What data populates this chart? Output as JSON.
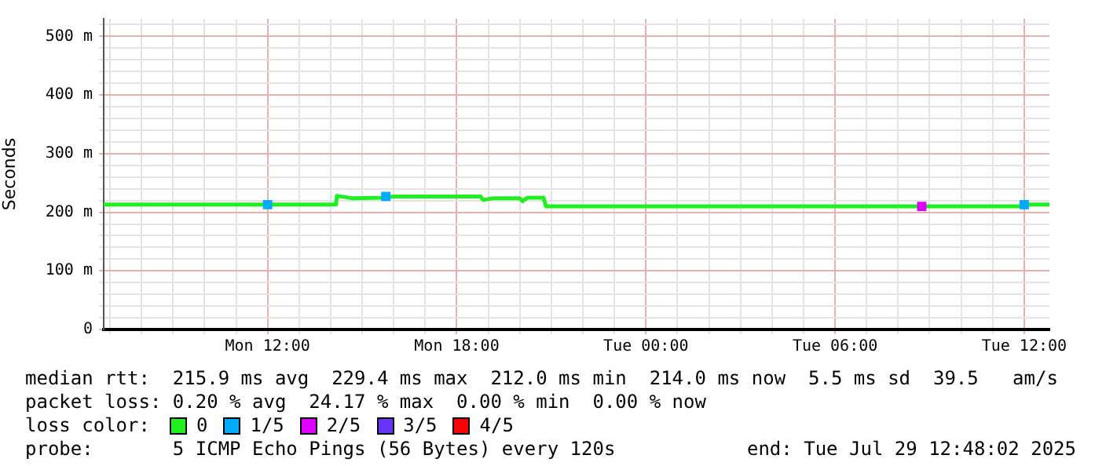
{
  "chart_data": {
    "type": "line",
    "ylabel": "Seconds",
    "legend_title": "loss color:",
    "legend": "bottom",
    "grid": true,
    "marker": "none",
    "xlim": [
      "2025-07-28T06:48",
      "2025-07-29T12:48"
    ],
    "xticks": [
      {
        "value": "2025-07-28T07:00",
        "label": null
      },
      {
        "value": "2025-07-28T08:00",
        "label": null
      },
      {
        "value": "2025-07-28T09:00",
        "label": null
      },
      {
        "value": "2025-07-28T10:00",
        "label": null
      },
      {
        "value": "2025-07-28T11:00",
        "label": null
      },
      {
        "value": "2025-07-28T12:00",
        "label": "Mon 12:00"
      },
      {
        "value": "2025-07-28T13:00",
        "label": null
      },
      {
        "value": "2025-07-28T14:00",
        "label": null
      },
      {
        "value": "2025-07-28T15:00",
        "label": null
      },
      {
        "value": "2025-07-28T16:00",
        "label": null
      },
      {
        "value": "2025-07-28T17:00",
        "label": null
      },
      {
        "value": "2025-07-28T18:00",
        "label": "Mon 18:00"
      },
      {
        "value": "2025-07-28T19:00",
        "label": null
      },
      {
        "value": "2025-07-28T20:00",
        "label": null
      },
      {
        "value": "2025-07-28T21:00",
        "label": null
      },
      {
        "value": "2025-07-28T22:00",
        "label": null
      },
      {
        "value": "2025-07-28T23:00",
        "label": null
      },
      {
        "value": "2025-07-29T00:00",
        "label": "Tue 00:00"
      },
      {
        "value": "2025-07-29T01:00",
        "label": null
      },
      {
        "value": "2025-07-29T02:00",
        "label": null
      },
      {
        "value": "2025-07-29T03:00",
        "label": null
      },
      {
        "value": "2025-07-29T04:00",
        "label": null
      },
      {
        "value": "2025-07-29T05:00",
        "label": null
      },
      {
        "value": "2025-07-29T06:00",
        "label": "Tue 06:00"
      },
      {
        "value": "2025-07-29T07:00",
        "label": null
      },
      {
        "value": "2025-07-29T08:00",
        "label": null
      },
      {
        "value": "2025-07-29T09:00",
        "label": null
      },
      {
        "value": "2025-07-29T10:00",
        "label": null
      },
      {
        "value": "2025-07-29T11:00",
        "label": null
      },
      {
        "value": "2025-07-29T12:00",
        "label": "Tue 12:00"
      }
    ],
    "ylim": [
      0,
      530
    ],
    "yticks": [
      0,
      {
        "value": 20,
        "label": null
      },
      {
        "value": 40,
        "label": null
      },
      {
        "value": 60,
        "label": null
      },
      {
        "value": 80,
        "label": null
      },
      {
        "value": 100,
        "label": "100 m"
      },
      {
        "value": 120,
        "label": null
      },
      {
        "value": 140,
        "label": null
      },
      {
        "value": 160,
        "label": null
      },
      {
        "value": 180,
        "label": null
      },
      {
        "value": 200,
        "label": "200 m"
      },
      {
        "value": 220,
        "label": null
      },
      {
        "value": 240,
        "label": null
      },
      {
        "value": 260,
        "label": null
      },
      {
        "value": 280,
        "label": null
      },
      {
        "value": 300,
        "label": "300 m"
      },
      {
        "value": 320,
        "label": null
      },
      {
        "value": 340,
        "label": null
      },
      {
        "value": 360,
        "label": null
      },
      {
        "value": 380,
        "label": null
      },
      {
        "value": 400,
        "label": "400 m"
      },
      {
        "value": 420,
        "label": null
      },
      {
        "value": 440,
        "label": null
      },
      {
        "value": 460,
        "label": null
      },
      {
        "value": 480,
        "label": null
      },
      {
        "value": 500,
        "label": "500 m"
      },
      {
        "value": 520,
        "label": null
      }
    ],
    "series": [
      {
        "name": "0",
        "color": "#20f020",
        "x": [
          "2025-07-28T06:48",
          "2025-07-28T14:10",
          "2025-07-28T14:12",
          "2025-07-28T14:40",
          "2025-07-28T15:40",
          "2025-07-28T16:00",
          "2025-07-28T18:45",
          "2025-07-28T18:50",
          "2025-07-28T19:10",
          "2025-07-28T20:00",
          "2025-07-28T20:05",
          "2025-07-28T20:15",
          "2025-07-28T20:45",
          "2025-07-28T20:50",
          "2025-07-29T12:00",
          "2025-07-29T12:05",
          "2025-07-29T12:48"
        ],
        "values": [
          213,
          213,
          228,
          224,
          225,
          227,
          227,
          221,
          224,
          224,
          219,
          225,
          225,
          210,
          210,
          213,
          213
        ]
      },
      {
        "name": "1/5",
        "color": "#00aaff",
        "type": "scatter",
        "marker": "square",
        "x": [
          "2025-07-28T12:00",
          "2025-07-28T15:45",
          "2025-07-29T12:00"
        ],
        "values": [
          213,
          227,
          213
        ]
      },
      {
        "name": "2/5",
        "color": "#dd00ff",
        "type": "scatter",
        "marker": "square",
        "x": [
          "2025-07-29T08:45"
        ],
        "values": [
          210
        ]
      },
      {
        "name": "3/5",
        "color": "#6633ff",
        "type": "scatter",
        "marker": "square"
      },
      {
        "name": "4/5",
        "color": "#ff0000",
        "type": "scatter",
        "marker": "square"
      }
    ],
    "annotations": [
      "median rtt:  215.9 ms avg  229.4 ms max  212.0 ms min  214.0 ms now  5.5 ms sd  39.5   am/s",
      "packet loss: 0.20 % avg  24.17 % max  0.00 % min  0.00 % now",
      "probe:       5 ICMP Echo Pings (56 Bytes) every 120s",
      "end: Tue Jul 29 12:48:02 2025"
    ]
  }
}
